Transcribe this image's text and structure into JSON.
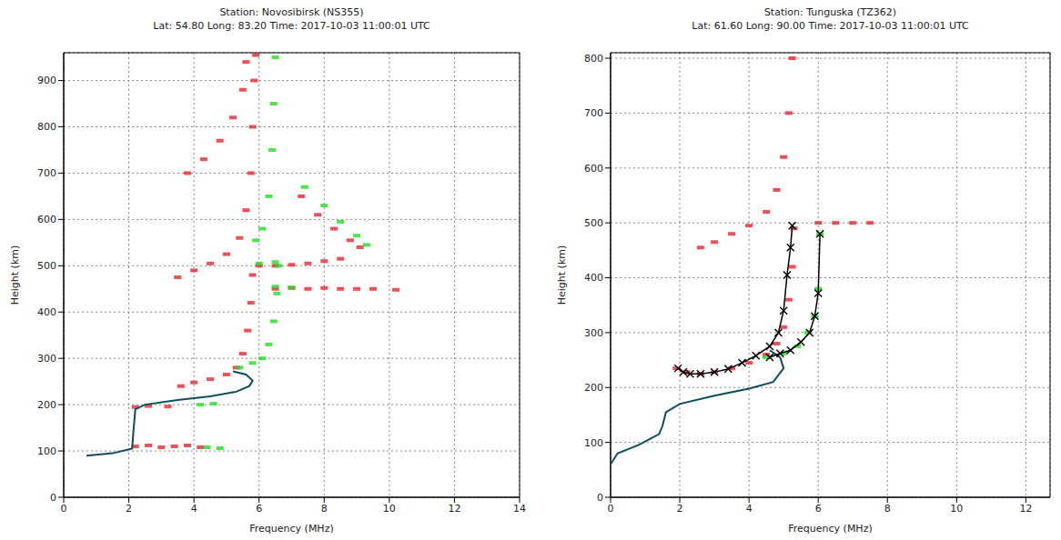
{
  "chart_data": [
    {
      "type": "scatter",
      "title": "Station: Novosibirsk (NS355)",
      "subtitle": "Lat: 54.80 Long: 83.20 Time: 2017-10-03 11:00:01 UTC",
      "x_label": "Frequency (MHz)",
      "y_label": "Height (km)",
      "xlim": [
        0,
        14
      ],
      "xticks": [
        0,
        2,
        4,
        6,
        8,
        10,
        12,
        14
      ],
      "ylim": [
        0,
        960
      ],
      "yticks": [
        0,
        100,
        200,
        300,
        400,
        500,
        600,
        700,
        800,
        900
      ],
      "grid": true,
      "series": [
        {
          "type": "scatter",
          "color": "#e8242c",
          "marker": "dash",
          "x": [
            2.2,
            2.6,
            3.0,
            3.4,
            3.8,
            4.2,
            2.2,
            2.6,
            3.2,
            3.6,
            4.0,
            4.5,
            5.0,
            5.3,
            5.5,
            5.65,
            5.75,
            5.8,
            3.5,
            4.0,
            4.5,
            5.0,
            5.4,
            5.6,
            5.75,
            5.8,
            5.85,
            5.9,
            3.8,
            4.3,
            4.8,
            5.2,
            5.5,
            5.6,
            6.0,
            6.5,
            7.0,
            7.5,
            8.0,
            8.5,
            6.5,
            7.0,
            7.5,
            8.0,
            8.5,
            9.0,
            9.5,
            10.2,
            7.3,
            7.8,
            8.3,
            8.8,
            9.1
          ],
          "values": [
            110,
            112,
            108,
            110,
            112,
            108,
            195,
            197,
            196,
            240,
            248,
            255,
            265,
            280,
            310,
            360,
            420,
            480,
            475,
            490,
            505,
            525,
            560,
            620,
            700,
            800,
            900,
            955,
            700,
            730,
            770,
            820,
            880,
            940,
            500,
            500,
            502,
            505,
            510,
            515,
            450,
            452,
            450,
            452,
            450,
            450,
            450,
            448,
            650,
            610,
            580,
            555,
            540
          ]
        },
        {
          "type": "scatter",
          "color": "#22dd22",
          "marker": "dash",
          "x": [
            4.4,
            4.8,
            4.2,
            4.6,
            5.4,
            5.8,
            6.1,
            6.3,
            6.45,
            6.55,
            6.6,
            5.9,
            6.1,
            6.3,
            6.4,
            6.45,
            6.5,
            6.0,
            6.5,
            6.5,
            7.0,
            7.4,
            8.0,
            8.5,
            9.0,
            9.3
          ],
          "values": [
            108,
            106,
            200,
            202,
            280,
            290,
            300,
            330,
            380,
            440,
            500,
            555,
            580,
            650,
            750,
            850,
            950,
            505,
            508,
            455,
            453,
            670,
            630,
            595,
            565,
            545
          ]
        },
        {
          "type": "line",
          "color": "#0b4f5c",
          "marker": "none",
          "line_style": "solid",
          "x": [
            0.7,
            1.5,
            2.1,
            2.15,
            2.2,
            2.5,
            3.5,
            4.5,
            5.3,
            5.7,
            5.8,
            5.6,
            5.2
          ],
          "values": [
            90,
            95,
            105,
            150,
            190,
            200,
            210,
            218,
            228,
            240,
            252,
            265,
            272
          ]
        }
      ]
    },
    {
      "type": "scatter",
      "title": "Station: Tunguska (TZ362)",
      "subtitle": "Lat: 61.60 Long: 90.00 Time: 2017-10-03 11:00:01 UTC",
      "x_label": "Frequency (MHz)",
      "y_label": "Height (km)",
      "xlim": [
        0,
        12.7
      ],
      "xticks": [
        0,
        2,
        4,
        6,
        8,
        10,
        12
      ],
      "ylim": [
        0,
        810
      ],
      "yticks": [
        0,
        100,
        200,
        300,
        400,
        500,
        600,
        700,
        800
      ],
      "grid": true,
      "series": [
        {
          "type": "scatter",
          "color": "#e8242c",
          "marker": "dash",
          "x": [
            1.9,
            2.2,
            2.6,
            3.0,
            3.5,
            4.0,
            4.5,
            4.8,
            5.0,
            5.15,
            5.25,
            5.3,
            2.6,
            3.0,
            3.5,
            4.0,
            4.5,
            4.8,
            5.0,
            5.15,
            5.25,
            6.0,
            6.5,
            7.0,
            7.5
          ],
          "values": [
            235,
            228,
            225,
            228,
            235,
            245,
            260,
            280,
            310,
            360,
            420,
            490,
            455,
            465,
            480,
            495,
            520,
            560,
            620,
            700,
            800,
            500,
            500,
            500,
            500
          ]
        },
        {
          "type": "scatter",
          "color": "#22dd22",
          "marker": "dash",
          "x": [
            4.5,
            5.0,
            5.4,
            5.7,
            5.9,
            6.0,
            6.05
          ],
          "values": [
            255,
            262,
            275,
            300,
            330,
            380,
            480
          ]
        },
        {
          "type": "line",
          "color": "#0b4f5c",
          "marker": "none",
          "line_style": "solid",
          "x": [
            0,
            0.2,
            0.8,
            1.4,
            1.5,
            1.6,
            2.0,
            3.0,
            4.0,
            4.7,
            5.0,
            4.9,
            4.6
          ],
          "values": [
            60,
            80,
            95,
            115,
            130,
            155,
            170,
            185,
            198,
            210,
            235,
            255,
            268
          ]
        },
        {
          "type": "line",
          "color": "#000000",
          "marker": "x",
          "line_style": "solid",
          "x": [
            1.95,
            2.1,
            2.3,
            2.6,
            3.0,
            3.4,
            3.8,
            4.2,
            4.6,
            4.85,
            5.0,
            5.1,
            5.2,
            5.25
          ],
          "values": [
            235,
            228,
            225,
            225,
            228,
            234,
            245,
            258,
            275,
            300,
            340,
            405,
            455,
            495
          ]
        },
        {
          "type": "line",
          "color": "#000000",
          "marker": "x",
          "line_style": "solid",
          "x": [
            4.6,
            4.9,
            5.2,
            5.5,
            5.75,
            5.9,
            6.0,
            6.05
          ],
          "values": [
            255,
            262,
            268,
            283,
            300,
            330,
            372,
            480
          ]
        }
      ]
    }
  ]
}
